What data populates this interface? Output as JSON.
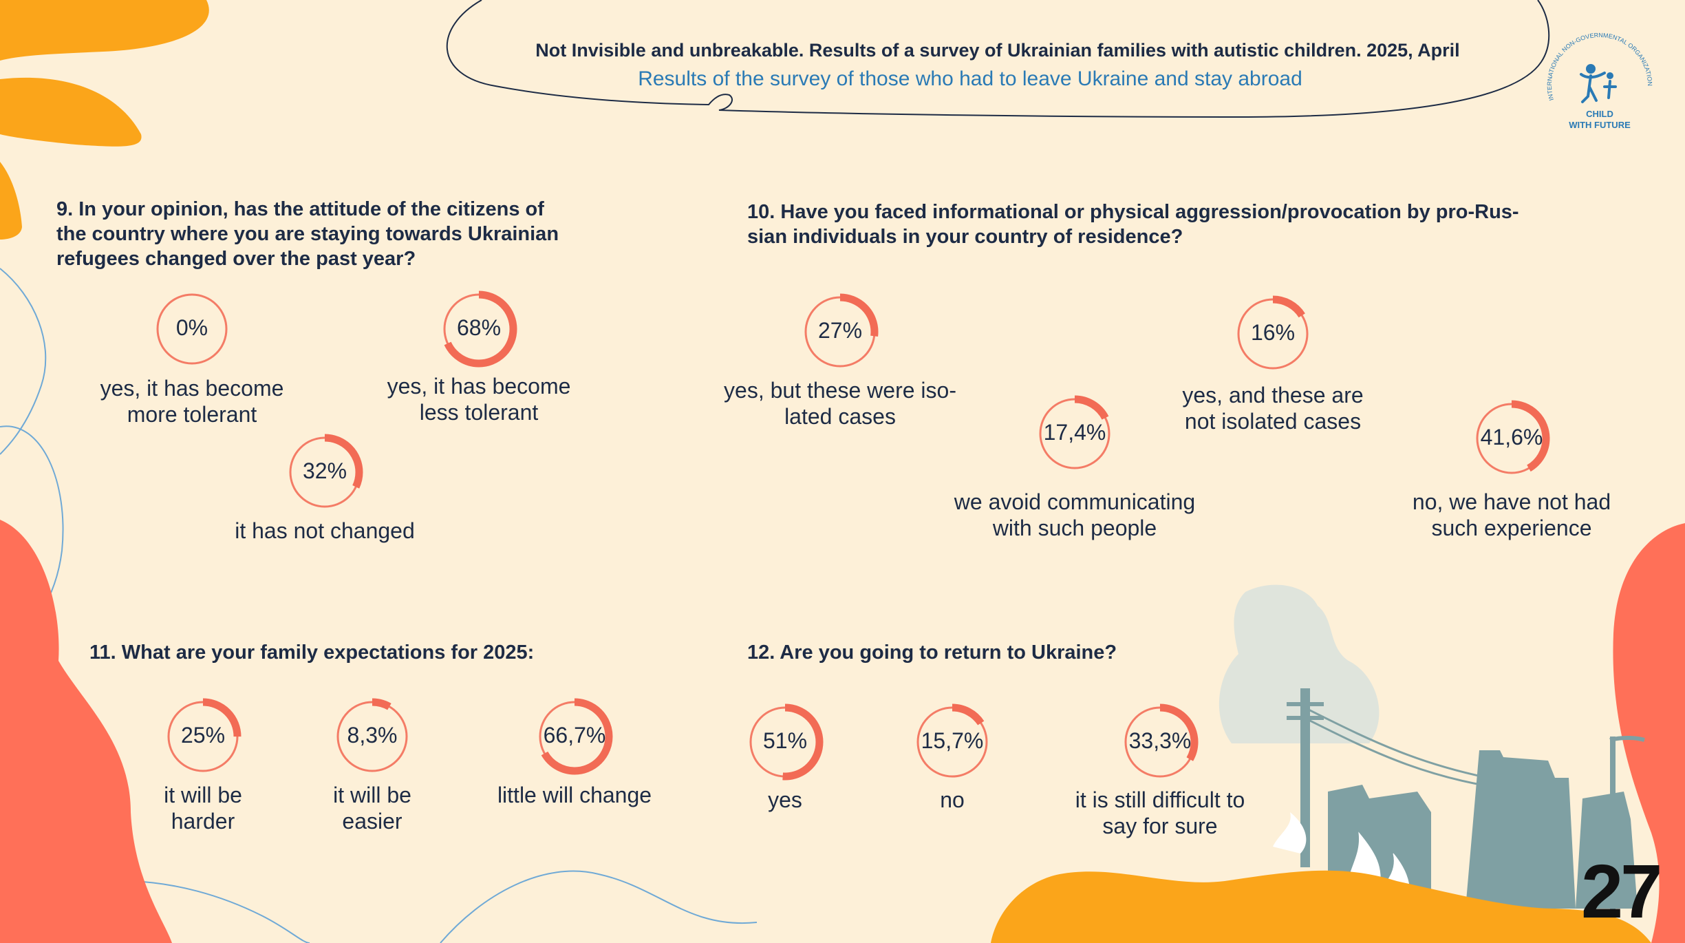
{
  "header": {
    "title": "Not Invisible and unbreakable. Results of a survey of Ukrainian families with autistic children. 2025, April",
    "subtitle": "Results of the survey of those who had to leave Ukraine and stay abroad"
  },
  "logo": {
    "org_line": "INTERNATIONAL NON-GOVERNMENTAL ORGANIZATION",
    "name_line1": "CHILD",
    "name_line2": "WITH FUTURE"
  },
  "page_number": "27",
  "colors": {
    "background": "#fdf0d8",
    "ring": "#f26b55",
    "ring_thin": "#f47c66",
    "text": "#1d2b45",
    "accent_blue": "#2a7ab5",
    "orange": "#fba51a",
    "coral": "#ff7058",
    "ruins": "#7fa0a3"
  },
  "chart_data": [
    {
      "type": "donut",
      "question": "9. In your opinion, has the attitude of the citizens of the country where you are staying towards Ukrainian refugees changed over the past year?",
      "question_lines": [
        "9. In your opinion, has the attitude of the citizens of",
        "the country where you are staying towards Ukrainian",
        "refugees changed over the past year?"
      ],
      "items": [
        {
          "value": 0,
          "label": "0%",
          "answer_lines": [
            "yes, it has become",
            "more tolerant"
          ]
        },
        {
          "value": 68,
          "label": "68%",
          "answer_lines": [
            "yes, it has become",
            "less tolerant"
          ]
        },
        {
          "value": 32,
          "label": "32%",
          "answer_lines": [
            "it has not changed"
          ]
        }
      ]
    },
    {
      "type": "donut",
      "question": "10. Have you faced informational or physical aggression/provocation by pro-Russian individuals in your country of residence?",
      "question_lines": [
        "10. Have you faced informational or physical aggression/provocation by pro-Rus-",
        "sian individuals in your country of residence?"
      ],
      "items": [
        {
          "value": 27,
          "label": "27%",
          "answer_lines": [
            "yes, but these were iso-",
            "lated cases"
          ]
        },
        {
          "value": 17.4,
          "label": "17,4%",
          "answer_lines": [
            "we avoid communicating",
            "with such people"
          ]
        },
        {
          "value": 16,
          "label": "16%",
          "answer_lines": [
            "yes, and these are",
            "not isolated cases"
          ]
        },
        {
          "value": 41.6,
          "label": "41,6%",
          "answer_lines": [
            "no, we have not had",
            "such experience"
          ]
        }
      ]
    },
    {
      "type": "donut",
      "question": "11. What are your family expectations for 2025:",
      "question_lines": [
        "11. What are your family expectations for 2025:"
      ],
      "items": [
        {
          "value": 25,
          "label": "25%",
          "answer_lines": [
            "it will be",
            "harder"
          ]
        },
        {
          "value": 8.3,
          "label": "8,3%",
          "answer_lines": [
            "it will be",
            "easier"
          ]
        },
        {
          "value": 66.7,
          "label": "66,7%",
          "answer_lines": [
            "little will change"
          ]
        }
      ]
    },
    {
      "type": "donut",
      "question": "12. Are you going to return to Ukraine?",
      "question_lines": [
        "12. Are you going to return to Ukraine?"
      ],
      "items": [
        {
          "value": 51,
          "label": "51%",
          "answer_lines": [
            "yes"
          ]
        },
        {
          "value": 15.7,
          "label": "15,7%",
          "answer_lines": [
            "no"
          ]
        },
        {
          "value": 33.3,
          "label": "33,3%",
          "answer_lines": [
            "it is still difficult to",
            "say for sure"
          ]
        }
      ]
    }
  ]
}
